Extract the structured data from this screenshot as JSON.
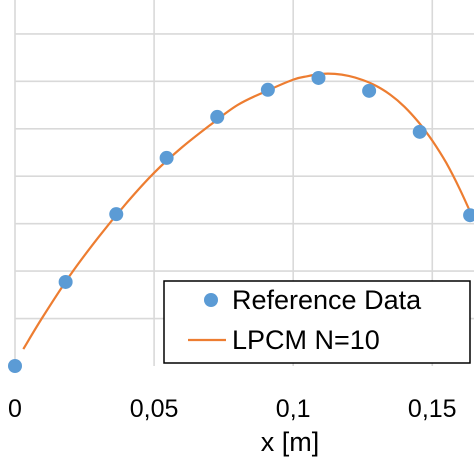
{
  "chart_data": {
    "type": "scatter",
    "xlabel": "x [m]",
    "ylabel": "",
    "title": "",
    "xlim": [
      0,
      0.165
    ],
    "ylim": [
      0,
      1.08
    ],
    "x_ticks": [
      0,
      0.05,
      0.1,
      0.15
    ],
    "x_tick_labels": [
      "0",
      "0,05",
      "0,1",
      "0,15"
    ],
    "y_gridlines": [
      0.14,
      0.28,
      0.42,
      0.56,
      0.7,
      0.84,
      0.98
    ],
    "grid": true,
    "legend_position": "bottom-right",
    "series": [
      {
        "name": "Reference Data",
        "kind": "scatter",
        "color": "#5b9bd5",
        "x": [
          0,
          0.0182,
          0.0364,
          0.0545,
          0.0727,
          0.0909,
          0.1091,
          0.1273,
          0.1455,
          0.1636
        ],
        "y": [
          0.0,
          0.248,
          0.448,
          0.614,
          0.735,
          0.815,
          0.85,
          0.812,
          0.691,
          0.445
        ]
      },
      {
        "name": "LPCM N=10",
        "kind": "line",
        "color": "#ed7d31",
        "x": [
          0.003,
          0.01,
          0.02,
          0.03,
          0.04,
          0.05,
          0.06,
          0.07,
          0.08,
          0.09,
          0.1,
          0.105,
          0.11,
          0.115,
          0.12,
          0.125,
          0.13,
          0.135,
          0.14,
          0.145,
          0.15,
          0.155,
          0.16,
          0.165
        ],
        "y": [
          0.05,
          0.145,
          0.27,
          0.38,
          0.48,
          0.57,
          0.645,
          0.71,
          0.77,
          0.81,
          0.845,
          0.855,
          0.862,
          0.862,
          0.856,
          0.844,
          0.826,
          0.8,
          0.765,
          0.72,
          0.665,
          0.6,
          0.52,
          0.43
        ]
      }
    ]
  }
}
